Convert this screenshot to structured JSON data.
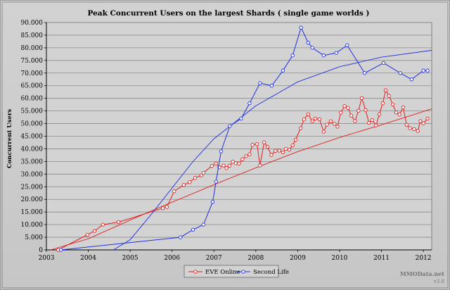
{
  "chart_data": {
    "type": "line",
    "title": "Peak Concurrent Users on the largest  Shards ( single game worlds )",
    "xlabel": "",
    "ylabel": "Concurrent Users",
    "xlim": [
      2003,
      2012.2
    ],
    "ylim": [
      0,
      90000
    ],
    "x_ticks": [
      "2003",
      "2004",
      "2005",
      "2006",
      "2007",
      "2008",
      "2009",
      "2010",
      "2011",
      "2012"
    ],
    "y_ticks": [
      "0",
      "5.000",
      "10.000",
      "15.000",
      "20.000",
      "25.000",
      "30.000",
      "35.000",
      "40.000",
      "45.000",
      "50.000",
      "55.000",
      "60.000",
      "65.000",
      "70.000",
      "75.000",
      "80.000",
      "85.000",
      "90.000"
    ],
    "grid": "horizontal",
    "legend_position": "bottom-center",
    "series": [
      {
        "name": "EVE Online",
        "color": "#e02020",
        "points": [
          [
            2003.28,
            0
          ],
          [
            2003.98,
            6000
          ],
          [
            2004.15,
            7500
          ],
          [
            2004.35,
            10000
          ],
          [
            2004.72,
            11000
          ],
          [
            2005.78,
            16500
          ],
          [
            2005.88,
            17000
          ],
          [
            2006.05,
            23200
          ],
          [
            2006.28,
            25700
          ],
          [
            2006.42,
            26800
          ],
          [
            2006.55,
            28500
          ],
          [
            2006.7,
            29500
          ],
          [
            2006.75,
            30500
          ],
          [
            2006.95,
            33200
          ],
          [
            2007.05,
            34200
          ],
          [
            2007.13,
            32700
          ],
          [
            2007.23,
            33400
          ],
          [
            2007.3,
            32400
          ],
          [
            2007.37,
            33300
          ],
          [
            2007.45,
            34900
          ],
          [
            2007.52,
            34300
          ],
          [
            2007.6,
            34200
          ],
          [
            2007.68,
            35900
          ],
          [
            2007.77,
            37100
          ],
          [
            2007.85,
            37800
          ],
          [
            2007.92,
            41600
          ],
          [
            2008.03,
            41900
          ],
          [
            2008.1,
            33400
          ],
          [
            2008.2,
            42600
          ],
          [
            2008.28,
            40800
          ],
          [
            2008.37,
            37600
          ],
          [
            2008.47,
            39200
          ],
          [
            2008.56,
            39300
          ],
          [
            2008.65,
            38600
          ],
          [
            2008.72,
            40000
          ],
          [
            2008.8,
            39600
          ],
          [
            2008.88,
            41400
          ],
          [
            2008.95,
            43600
          ],
          [
            2009.07,
            48200
          ],
          [
            2009.15,
            51600
          ],
          [
            2009.25,
            53700
          ],
          [
            2009.35,
            50900
          ],
          [
            2009.42,
            52000
          ],
          [
            2009.52,
            51700
          ],
          [
            2009.62,
            46800
          ],
          [
            2009.7,
            49600
          ],
          [
            2009.79,
            50900
          ],
          [
            2009.88,
            49900
          ],
          [
            2009.95,
            48800
          ],
          [
            2010.03,
            54300
          ],
          [
            2010.12,
            56900
          ],
          [
            2010.2,
            56200
          ],
          [
            2010.28,
            53200
          ],
          [
            2010.37,
            51000
          ],
          [
            2010.45,
            55100
          ],
          [
            2010.53,
            60100
          ],
          [
            2010.62,
            55400
          ],
          [
            2010.7,
            50300
          ],
          [
            2010.78,
            51400
          ],
          [
            2010.87,
            49300
          ],
          [
            2010.95,
            53700
          ],
          [
            2011.03,
            58000
          ],
          [
            2011.1,
            63200
          ],
          [
            2011.18,
            61000
          ],
          [
            2011.27,
            57600
          ],
          [
            2011.35,
            54400
          ],
          [
            2011.43,
            53600
          ],
          [
            2011.52,
            56400
          ],
          [
            2011.6,
            49500
          ],
          [
            2011.68,
            48200
          ],
          [
            2011.78,
            47800
          ],
          [
            2011.87,
            47100
          ],
          [
            2011.93,
            51000
          ],
          [
            2012.0,
            50100
          ],
          [
            2012.1,
            52000
          ]
        ],
        "trend": [
          [
            2003.1,
            0
          ],
          [
            2004.0,
            4400
          ],
          [
            2005.0,
            11800
          ],
          [
            2006.0,
            18900
          ],
          [
            2007.0,
            25800
          ],
          [
            2008.0,
            32500
          ],
          [
            2009.0,
            38900
          ],
          [
            2010.0,
            44500
          ],
          [
            2011.0,
            49500
          ],
          [
            2012.2,
            55800
          ]
        ]
      },
      {
        "name": "Second Life",
        "color": "#2030e0",
        "points": [
          [
            2003.35,
            0
          ],
          [
            2006.2,
            5000
          ],
          [
            2006.5,
            8000
          ],
          [
            2006.75,
            10000
          ],
          [
            2006.97,
            19000
          ],
          [
            2007.05,
            27000
          ],
          [
            2007.17,
            39000
          ],
          [
            2007.38,
            49000
          ],
          [
            2007.65,
            52000
          ],
          [
            2007.85,
            58000
          ],
          [
            2008.1,
            66000
          ],
          [
            2008.38,
            65000
          ],
          [
            2008.65,
            71000
          ],
          [
            2008.88,
            77000
          ],
          [
            2009.08,
            88000
          ],
          [
            2009.25,
            82000
          ],
          [
            2009.35,
            80000
          ],
          [
            2009.62,
            77000
          ],
          [
            2009.92,
            78000
          ],
          [
            2010.18,
            81000
          ],
          [
            2010.6,
            70000
          ],
          [
            2011.05,
            74000
          ],
          [
            2011.45,
            70000
          ],
          [
            2011.72,
            67500
          ],
          [
            2012.0,
            71000
          ],
          [
            2012.1,
            71000
          ]
        ],
        "trend": [
          [
            2004.6,
            0
          ],
          [
            2005.0,
            4000
          ],
          [
            2005.5,
            14000
          ],
          [
            2006.0,
            24500
          ],
          [
            2006.5,
            35000
          ],
          [
            2007.0,
            44000
          ],
          [
            2008.0,
            57000
          ],
          [
            2009.0,
            66500
          ],
          [
            2010.0,
            72500
          ],
          [
            2011.0,
            76300
          ],
          [
            2012.2,
            79000
          ]
        ]
      }
    ]
  },
  "watermark": {
    "site": "MMOData.net",
    "version": "v3.8"
  }
}
